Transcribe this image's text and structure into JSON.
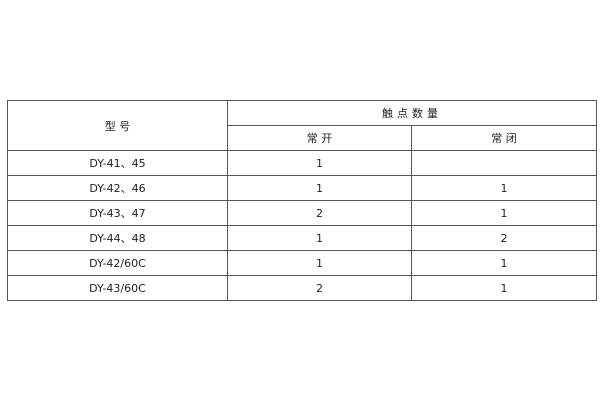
{
  "table": {
    "header": {
      "model": "型 号",
      "contacts": "触点数量",
      "normally_open": "常 开",
      "normally_closed": "常 闭"
    },
    "rows": [
      {
        "model": "DY-41、45",
        "no": "1",
        "nc": ""
      },
      {
        "model": "DY-42、46",
        "no": "1",
        "nc": "1"
      },
      {
        "model": "DY-43、47",
        "no": "2",
        "nc": "1"
      },
      {
        "model": "DY-44、48",
        "no": "1",
        "nc": "2"
      },
      {
        "model": "DY-42/60C",
        "no": "1",
        "nc": "1"
      },
      {
        "model": "DY-43/60C",
        "no": "2",
        "nc": "1"
      }
    ]
  }
}
